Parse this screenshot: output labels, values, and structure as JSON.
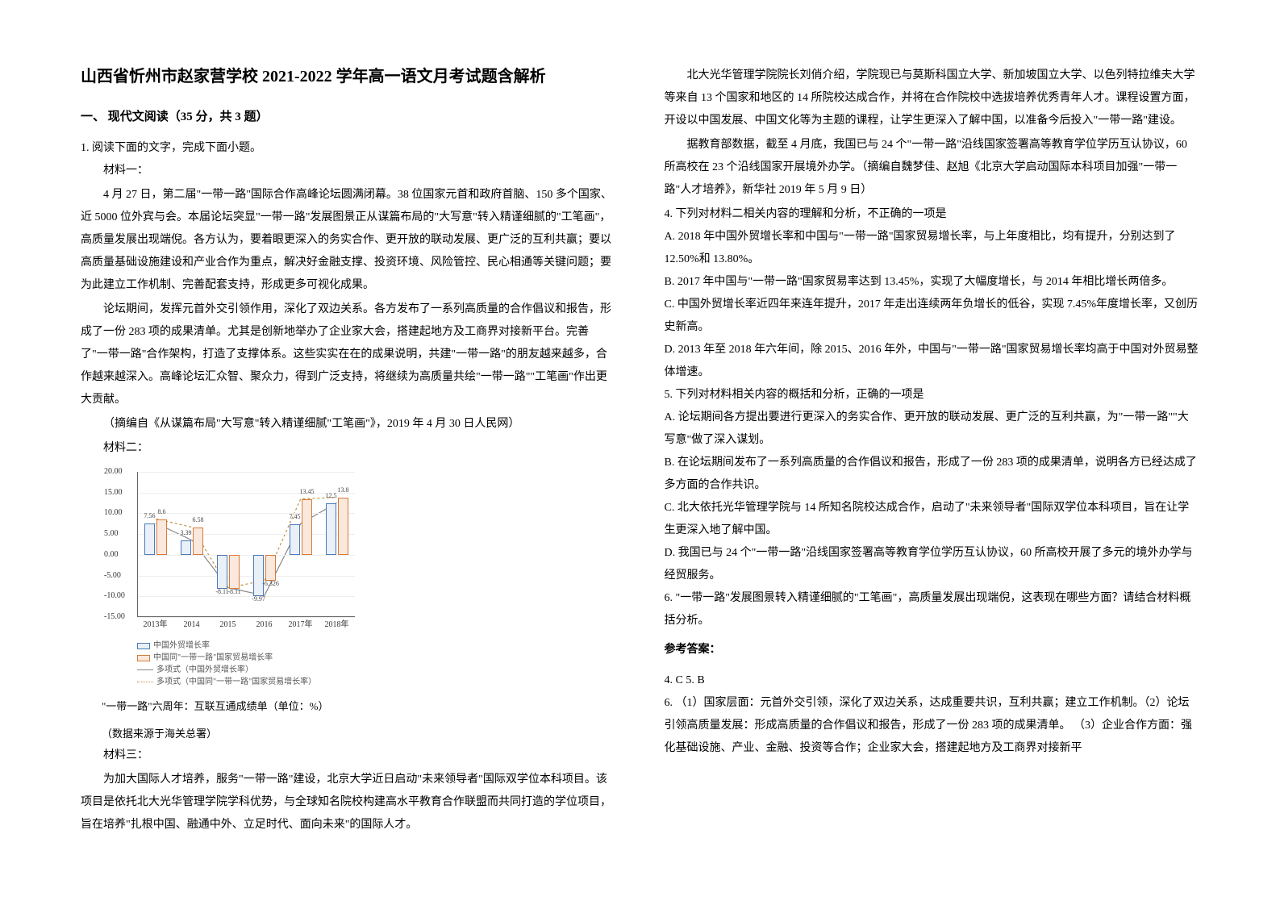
{
  "doc": {
    "title": "山西省忻州市赵家营学校 2021-2022 学年高一语文月考试题含解析",
    "section1": "一、 现代文阅读（35 分，共 3 题）",
    "q1_intro": "1. 阅读下面的文字，完成下面小题。",
    "mat1_label": "材料一：",
    "mat1_p1": "4 月 27 日，第二届\"一带一路\"国际合作高峰论坛圆满闭幕。38 位国家元首和政府首脑、150 多个国家、近 5000 位外宾与会。本届论坛突显\"一带一路\"发展图景正从谋篇布局的\"大写意\"转入精谨细腻的\"工笔画\"，高质量发展出现端倪。各方认为，要着眼更深入的务实合作、更开放的联动发展、更广泛的互利共赢；要以高质量基础设施建设和产业合作为重点，解决好金融支撑、投资环境、风险管控、民心相通等关键问题；要为此建立工作机制、完善配套支持，形成更多可视化成果。",
    "mat1_p2": "论坛期间，发挥元首外交引领作用，深化了双边关系。各方发布了一系列高质量的合作倡议和报告，形成了一份 283 项的成果清单。尤其是创新地举办了企业家大会，搭建起地方及工商界对接新平台。完善了\"一带一路\"合作架构，打造了支撑体系。这些实实在在的成果说明，共建\"一带一路\"的朋友越来越多，合作越来越深入。高峰论坛汇众智、聚众力，得到广泛支持，将继续为高质量共绘\"一带一路\"\"工笔画\"作出更大贡献。",
    "mat1_src": "（摘编自《从谋篇布局\"大写意\"转入精谨细腻\"工笔画\"》，2019 年 4 月 30 日人民网）",
    "mat2_label": "材料二：",
    "chart_caption1": "\"一带一路\"六周年：互联互通成绩单（单位：%）",
    "chart_caption2": "（数据来源于海关总署）",
    "mat3_label": "材料三：",
    "mat3_p1": "为加大国际人才培养，服务\"一带一路\"建设，北京大学近日启动\"未来领导者\"国际双学位本科项目。该项目是依托北大光华管理学院学科优势，与全球知名院校构建高水平教育合作联盟而共同打造的学位项目，旨在培养\"扎根中国、融通中外、立足时代、面向未来\"的国际人才。",
    "mat3_p2": "北大光华管理学院院长刘俏介绍，学院现已与莫斯科国立大学、新加坡国立大学、以色列特拉维夫大学等来自 13 个国家和地区的 14 所院校达成合作，并将在合作院校中选拔培养优秀青年人才。课程设置方面，开设以中国发展、中国文化等为主题的课程，让学生更深入了解中国，以准备今后投入\"一带一路\"建设。",
    "mat3_p3": "据教育部数据，截至 4 月底，我国已与 24 个\"一带一路\"沿线国家签署高等教育学位学历互认协议，60 所高校在 23 个沿线国家开展境外办学。（摘编自魏梦佳、赵旭《北京大学启动国际本科项目加强\"一带一路\"人才培养》，新华社 2019 年 5 月 9 日）",
    "q4": "4.  下列对材料二相关内容的理解和分析，不正确的一项是",
    "q4a": "A.  2018 年中国外贸增长率和中国与\"一带一路\"国家贸易增长率，与上年度相比，均有提升，分别达到了 12.50%和 13.80%。",
    "q4b": "B.  2017 年中国与\"一带一路\"国家贸易率达到 13.45%，实现了大幅度增长，与 2014 年相比增长两倍多。",
    "q4c": "C.  中国外贸增长率近四年来连年提升，2017 年走出连续两年负增长的低谷，实现 7.45%年度增长率，又创历史新高。",
    "q4d": "D.  2013 年至 2018 年六年间，除 2015、2016 年外，中国与\"一带一路\"国家贸易增长率均高于中国对外贸易整体增速。",
    "q5": "5.  下列对材料相关内容的概括和分析，正确的一项是",
    "q5a": "A.  论坛期间各方提出要进行更深入的务实合作、更开放的联动发展、更广泛的互利共赢，为\"一带一路\"\"大写意\"做了深入谋划。",
    "q5b": "B.  在论坛期间发布了一系列高质量的合作倡议和报告，形成了一份 283 项的成果清单，说明各方已经达成了多方面的合作共识。",
    "q5c": "C.  北大依托光华管理学院与 14 所知名院校达成合作，启动了\"未来领导者\"国际双学位本科项目，旨在让学生更深入地了解中国。",
    "q5d": "D.  我国已与 24 个\"一带一路\"沿线国家签署高等教育学位学历互认协议，60 所高校开展了多元的境外办学与经贸服务。",
    "q6": "6.  \"一带一路\"发展图景转入精谨细腻的\"工笔画\"，高质量发展出现端倪，这表现在哪些方面？请结合材料概括分析。",
    "ans_label": "参考答案：",
    "ans4": "4.  C          5.  B",
    "ans6": "6.  （1）国家层面：元首外交引领，深化了双边关系，达成重要共识，互利共赢；建立工作机制。（2）论坛引领高质量发展：形成高质量的合作倡议和报告，形成了一份 283 项的成果清单。 （3）企业合作方面：强化基础设施、产业、金融、投资等合作；企业家大会，搭建起地方及工商界对接新平"
  },
  "chart": {
    "type": "bar-line-combo",
    "ylim": [
      -15,
      20
    ],
    "yticks": [
      -15,
      -10,
      -5,
      0,
      5,
      10,
      15,
      20
    ],
    "years": [
      "2013年",
      "2014",
      "2015",
      "2016",
      "2017年",
      "2018年"
    ],
    "series1": {
      "name": "中国外贸增长率",
      "values": [
        7.56,
        3.39,
        -8.11,
        -9.97,
        7.45,
        12.5
      ],
      "color_border": "#4a7ab8",
      "color_fill": "#eaf0f8"
    },
    "series2": {
      "name": "中国同\"一带一路\"国家贸易增长率",
      "values": [
        8.6,
        6.58,
        -8.11,
        -6.326,
        13.45,
        13.8
      ],
      "color_border": "#d97a3a",
      "color_fill": "#f9e8db"
    },
    "legend": {
      "l1": "中国外贸增长率",
      "l2": "中国同\"一带一路\"国家贸易增长率",
      "l3": "多项式（中国外贸增长率）",
      "l4": "多项式（中国同\"一带一路\"国家贸易增长率）"
    },
    "line1_color": "#888888",
    "line2_color": "#c09040",
    "background_color": "#ffffff"
  }
}
